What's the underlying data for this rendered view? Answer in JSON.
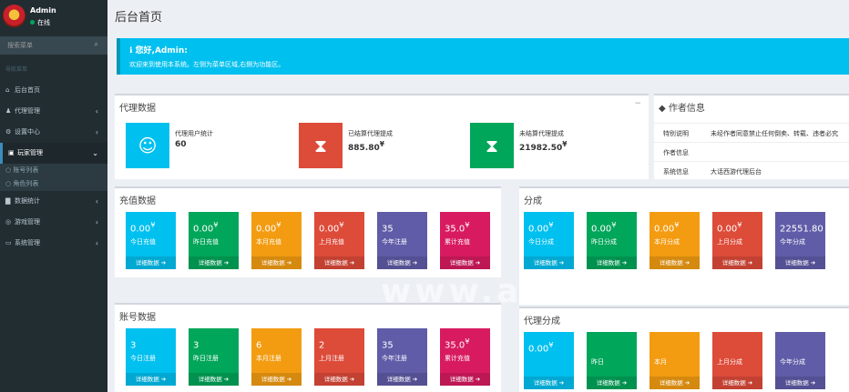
{
  "sidebar": {
    "user_name": "Admin",
    "user_status": "在线",
    "search_placeholder": "搜索菜单",
    "nav_header": "导航菜单",
    "items": [
      {
        "label": "后台首页",
        "icon": "home-icon"
      },
      {
        "label": "代理管理",
        "icon": "users-icon"
      },
      {
        "label": "设置中心",
        "icon": "gear-icon"
      },
      {
        "label": "玩家管理",
        "icon": "book-icon"
      },
      {
        "label": "数据统计",
        "icon": "bar-chart-icon"
      },
      {
        "label": "游戏管理",
        "icon": "gamepad-icon"
      },
      {
        "label": "系统管理",
        "icon": "desktop-icon"
      }
    ],
    "sub_items": [
      {
        "label": "账号列表"
      },
      {
        "label": "角色列表"
      }
    ]
  },
  "page_title": "后台首页",
  "callout": {
    "title": "ℹ 您好,Admin:",
    "desc": "欢迎来到使用本系统。左侧为菜单区域,右侧为功能区。"
  },
  "agent_box": {
    "title": "代理数据",
    "tool": "−",
    "items": [
      {
        "label": "代理用户统计",
        "value": "60",
        "color": "#00c0ef",
        "icon": "users-icon"
      },
      {
        "label": "已结算代理提成",
        "value": "885.80",
        "unit": "¥",
        "color": "#dd4b39",
        "icon": "hourglass-icon"
      },
      {
        "label": "未结算代理提成",
        "value": "21982.50",
        "unit": "¥",
        "color": "#00a65a",
        "icon": "hourglass-icon"
      }
    ]
  },
  "author_box": {
    "title": "作者信息",
    "rows": [
      {
        "k": "特别说明",
        "v": "未经作者同意禁止任何倒卖、转载、违者必究"
      },
      {
        "k": "作者信息",
        "v": ""
      },
      {
        "k": "系统信息",
        "v": "大话西游代理后台"
      }
    ]
  },
  "recharge_box": {
    "title": "充值数据",
    "footer": "详细数据 ➔",
    "tiles": [
      {
        "value": "0.00",
        "unit": "¥",
        "label": "今日充值",
        "color": "aqua"
      },
      {
        "value": "0.00",
        "unit": "¥",
        "label": "昨日充值",
        "color": "green"
      },
      {
        "value": "0.00",
        "unit": "¥",
        "label": "本月充值",
        "color": "orange"
      },
      {
        "value": "0.00",
        "unit": "¥",
        "label": "上月充值",
        "color": "red"
      },
      {
        "value": "35",
        "unit": "",
        "label": "今年注册",
        "color": "purple"
      },
      {
        "value": "35.0",
        "unit": "¥",
        "label": "累计充值",
        "color": "maroon"
      }
    ]
  },
  "share_box": {
    "title": "分成",
    "footer": "详细数据 ➔",
    "tiles": [
      {
        "value": "0.00",
        "unit": "¥",
        "label": "今日分成",
        "color": "aqua"
      },
      {
        "value": "0.00",
        "unit": "¥",
        "label": "昨日分成",
        "color": "green"
      },
      {
        "value": "0.00",
        "unit": "¥",
        "label": "本月分成",
        "color": "orange"
      },
      {
        "value": "0.00",
        "unit": "¥",
        "label": "上月分成",
        "color": "red"
      },
      {
        "value": "22551.80",
        "unit": "",
        "label": "今年分成",
        "color": "purple"
      }
    ]
  },
  "account_box": {
    "title": "账号数据",
    "footer": "详细数据 ➔",
    "tiles": [
      {
        "value": "3",
        "unit": "",
        "label": "今日注册",
        "color": "aqua"
      },
      {
        "value": "3",
        "unit": "",
        "label": "昨日注册",
        "color": "green"
      },
      {
        "value": "6",
        "unit": "",
        "label": "本月注册",
        "color": "orange"
      },
      {
        "value": "2",
        "unit": "",
        "label": "上月注册",
        "color": "red"
      },
      {
        "value": "35",
        "unit": "",
        "label": "今年注册",
        "color": "purple"
      },
      {
        "value": "35.0",
        "unit": "¥",
        "label": "累计充值",
        "color": "maroon"
      }
    ]
  },
  "agent_share_box": {
    "title": "代理分成",
    "footer": "详细数据 ➔",
    "tiles": [
      {
        "value": "0.00",
        "unit": "¥",
        "label": "",
        "color": "aqua"
      },
      {
        "value": "",
        "unit": "",
        "label": "昨日",
        "color": "green"
      },
      {
        "value": "",
        "unit": "",
        "label": "本月",
        "color": "orange"
      },
      {
        "value": "",
        "unit": "",
        "label": "上月分成",
        "color": "red"
      },
      {
        "value": "",
        "unit": "",
        "label": "今年分成",
        "color": "purple"
      }
    ]
  },
  "watermark": "www.aio.cc"
}
